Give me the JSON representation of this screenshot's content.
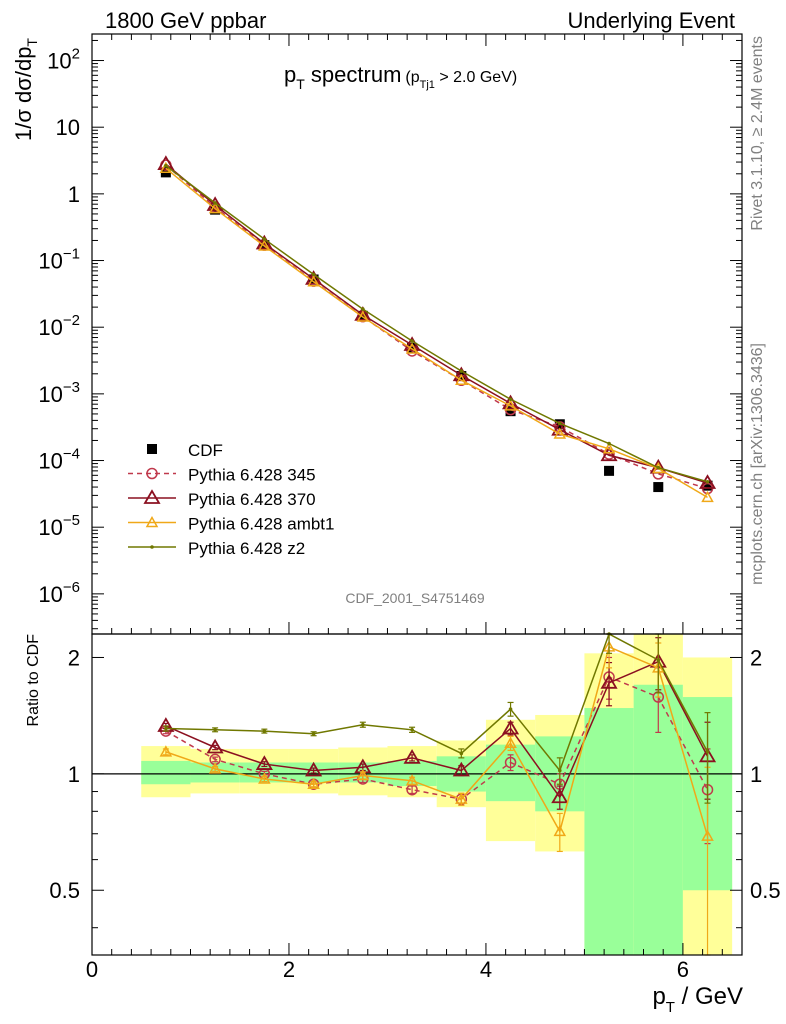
{
  "header": {
    "left": "1800 GeV ppbar",
    "right": "Underlying Event"
  },
  "side_labels": {
    "rivet": "Rivet 3.1.10, ≥ 2.4M events",
    "site": "mcplots.cern.ch [arXiv:1306.3436]"
  },
  "analysis_id": "CDF_2001_S4751469",
  "plot_title": {
    "main": "p",
    "main_sub": "T",
    "main_rest": " spectrum",
    "cut_open": "(p",
    "cut_sub": "Tj1",
    "cut_rest": " > 2.0 GeV)"
  },
  "axes": {
    "ylabel_main": {
      "pre": "1/σ dσ/dp",
      "sub": "T"
    },
    "ylabel_ratio": "Ratio to CDF",
    "xlabel": {
      "pre": "p",
      "sub": "T",
      "post": " / GeV"
    }
  },
  "colors": {
    "cdf": "#000000",
    "p345": "#c0394c",
    "p370": "#8b1020",
    "ambt1": "#f0a818",
    "z2": "#707800",
    "band_green": "#99ff99",
    "band_yellow": "#ffff99"
  },
  "chart_data": [
    {
      "type": "line",
      "panel": "main",
      "yscale": "log",
      "xlim": [
        0,
        6.6
      ],
      "ylim": [
        2.5e-07,
        250
      ],
      "y_ticks": [
        {
          "value": 1e-06,
          "base": "10",
          "exp": "−6"
        },
        {
          "value": 1e-05,
          "base": "10",
          "exp": "−5"
        },
        {
          "value": 0.0001,
          "base": "10",
          "exp": "−4"
        },
        {
          "value": 0.001,
          "base": "10",
          "exp": "−3"
        },
        {
          "value": 0.01,
          "base": "10",
          "exp": "−2"
        },
        {
          "value": 0.1,
          "base": "10",
          "exp": "−1"
        },
        {
          "value": 1,
          "base": "1",
          "exp": ""
        },
        {
          "value": 10,
          "base": "10",
          "exp": ""
        },
        {
          "value": 100,
          "base": "10",
          "exp": "2"
        }
      ],
      "x": [
        0.75,
        1.25,
        1.75,
        2.25,
        2.75,
        3.25,
        3.75,
        4.25,
        4.75,
        5.25,
        5.75,
        6.25
      ],
      "series": [
        {
          "name": "CDF",
          "key": "cdf",
          "marker": "square",
          "values": [
            2.1,
            0.58,
            0.17,
            0.052,
            0.0148,
            0.0049,
            0.00185,
            0.00055,
            0.00035,
            7e-05,
            4e-05,
            4.2e-05
          ]
        },
        {
          "name": "Pythia 6.428 345",
          "key": "p345",
          "marker": "circle",
          "dashed": true,
          "values": [
            2.7,
            0.63,
            0.17,
            0.049,
            0.0144,
            0.0044,
            0.0016,
            0.00058,
            0.00032,
            0.000125,
            6.3e-05,
            3.8e-05
          ]
        },
        {
          "name": "Pythia 6.428 370",
          "key": "p370",
          "marker": "triangle",
          "values": [
            2.8,
            0.68,
            0.18,
            0.053,
            0.0153,
            0.0054,
            0.0019,
            0.00072,
            0.00029,
            0.00012,
            7.8e-05,
            4.6e-05
          ]
        },
        {
          "name": "Pythia 6.428 ambt1",
          "key": "ambt1",
          "marker": "triangle-small",
          "values": [
            2.42,
            0.6,
            0.165,
            0.048,
            0.0142,
            0.0047,
            0.0016,
            0.00066,
            0.00025,
            0.00015,
            7.6e-05,
            2.8e-05
          ]
        },
        {
          "name": "Pythia 6.428 z2",
          "key": "z2",
          "marker": "dot",
          "values": [
            2.65,
            0.73,
            0.21,
            0.062,
            0.0187,
            0.0062,
            0.0022,
            0.00083,
            0.00036,
            0.00018,
            7.8e-05,
            4.8e-05
          ]
        }
      ]
    },
    {
      "type": "line",
      "panel": "ratio",
      "yscale": "log",
      "xlim": [
        0,
        6.6
      ],
      "ylim": [
        0.34,
        2.3
      ],
      "y_ticks": [
        {
          "value": 0.5,
          "label": "0.5"
        },
        {
          "value": 1,
          "label": "1"
        },
        {
          "value": 2,
          "label": "2"
        }
      ],
      "x_ticks": [
        {
          "value": 0,
          "label": "0"
        },
        {
          "value": 2,
          "label": "2"
        },
        {
          "value": 4,
          "label": "4"
        },
        {
          "value": 6,
          "label": "6"
        }
      ],
      "bins": [
        {
          "lo": 0.5,
          "hi": 1.0,
          "green": [
            0.94,
            1.08
          ],
          "yellow": [
            0.87,
            1.18
          ]
        },
        {
          "lo": 1.0,
          "hi": 1.5,
          "green": [
            0.95,
            1.07
          ],
          "yellow": [
            0.89,
            1.16
          ]
        },
        {
          "lo": 1.5,
          "hi": 2.0,
          "green": [
            0.95,
            1.07
          ],
          "yellow": [
            0.89,
            1.16
          ]
        },
        {
          "lo": 2.0,
          "hi": 2.5,
          "green": [
            0.95,
            1.07
          ],
          "yellow": [
            0.89,
            1.16
          ]
        },
        {
          "lo": 2.5,
          "hi": 3.0,
          "green": [
            0.95,
            1.07
          ],
          "yellow": [
            0.88,
            1.17
          ]
        },
        {
          "lo": 3.0,
          "hi": 3.5,
          "green": [
            0.93,
            1.08
          ],
          "yellow": [
            0.87,
            1.18
          ]
        },
        {
          "lo": 3.5,
          "hi": 4.0,
          "green": [
            0.9,
            1.11
          ],
          "yellow": [
            0.82,
            1.22
          ]
        },
        {
          "lo": 4.0,
          "hi": 4.5,
          "green": [
            0.85,
            1.19
          ],
          "yellow": [
            0.67,
            1.38
          ]
        },
        {
          "lo": 4.5,
          "hi": 5.0,
          "green": [
            0.8,
            1.25
          ],
          "yellow": [
            0.63,
            1.42
          ]
        },
        {
          "lo": 5.0,
          "hi": 5.5,
          "green": [
            0.34,
            1.48
          ],
          "yellow": [
            0.34,
            2.05
          ]
        },
        {
          "lo": 5.5,
          "hi": 6.0,
          "green": [
            0.34,
            1.7
          ],
          "yellow": [
            0.34,
            2.3
          ]
        },
        {
          "lo": 6.0,
          "hi": 6.5,
          "green": [
            0.5,
            1.58
          ],
          "yellow": [
            0.34,
            2.0
          ]
        }
      ],
      "x": [
        0.75,
        1.25,
        1.75,
        2.25,
        2.75,
        3.25,
        3.75,
        4.25,
        4.75,
        5.25,
        5.75,
        6.25
      ],
      "series": [
        {
          "name": "Pythia 6.428 345",
          "key": "p345",
          "marker": "circle",
          "dashed": true,
          "values": [
            1.29,
            1.09,
            1.0,
            0.94,
            0.97,
            0.91,
            0.86,
            1.07,
            0.94,
            1.78,
            1.58,
            0.91
          ],
          "err": [
            0.02,
            0.015,
            0.015,
            0.015,
            0.02,
            0.02,
            0.03,
            0.05,
            0.06,
            0.22,
            0.3,
            0.25
          ]
        },
        {
          "name": "Pythia 6.428 370",
          "key": "p370",
          "marker": "triangle",
          "values": [
            1.33,
            1.17,
            1.06,
            1.02,
            1.04,
            1.1,
            1.02,
            1.31,
            0.87,
            1.72,
            1.95,
            1.11
          ],
          "err": [
            0.02,
            0.015,
            0.015,
            0.015,
            0.02,
            0.02,
            0.03,
            0.05,
            0.06,
            0.22,
            0.3,
            0.25
          ]
        },
        {
          "name": "Pythia 6.428 ambt1",
          "key": "ambt1",
          "marker": "triangle-small",
          "values": [
            1.14,
            1.03,
            0.97,
            0.94,
            0.99,
            0.96,
            0.86,
            1.2,
            0.71,
            2.13,
            1.88,
            0.69
          ],
          "err": [
            0.02,
            0.015,
            0.015,
            0.015,
            0.02,
            0.02,
            0.03,
            0.05,
            0.08,
            0.25,
            0.3,
            0.35
          ]
        },
        {
          "name": "Pythia 6.428 z2",
          "key": "z2",
          "marker": "dot",
          "values": [
            1.31,
            1.3,
            1.29,
            1.27,
            1.34,
            1.3,
            1.13,
            1.47,
            1.02,
            2.3,
            1.97,
            1.14
          ],
          "err": [
            0.02,
            0.015,
            0.015,
            0.015,
            0.02,
            0.02,
            0.03,
            0.06,
            0.08,
            0.25,
            0.35,
            0.3
          ]
        }
      ]
    }
  ]
}
